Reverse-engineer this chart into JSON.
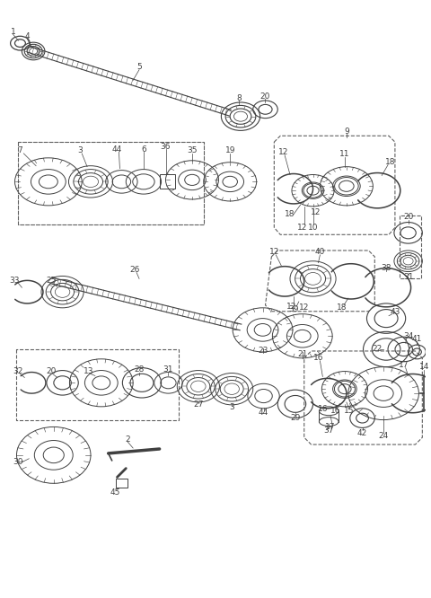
{
  "bg_color": "#ffffff",
  "lc": "#404040",
  "dc": "#606060",
  "fig_w": 4.8,
  "fig_h": 6.66,
  "dpi": 100
}
